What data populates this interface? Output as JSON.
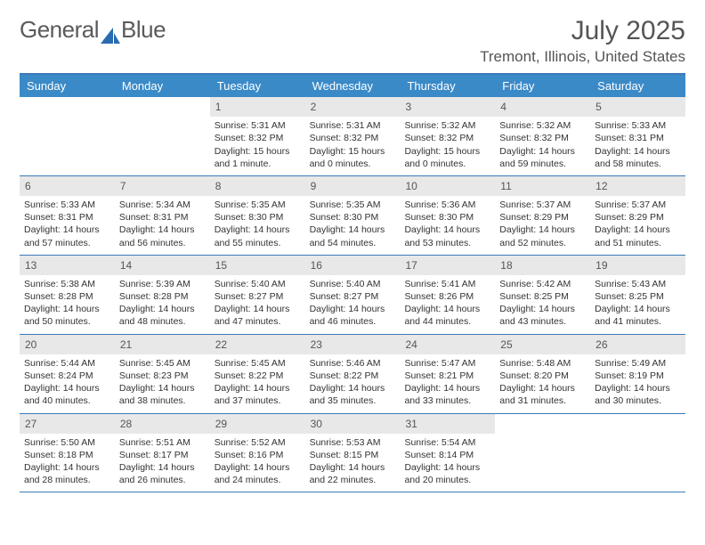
{
  "logo": {
    "text1": "General",
    "text2": "Blue"
  },
  "title": "July 2025",
  "location": "Tremont, Illinois, United States",
  "colors": {
    "header_bg": "#3b8ac8",
    "border": "#3b7ab8",
    "daynum_bg": "#e8e8e8",
    "text": "#333333",
    "title_text": "#555555"
  },
  "typography": {
    "title_fontsize": 30,
    "location_fontsize": 17,
    "weekday_fontsize": 13,
    "daynum_fontsize": 12,
    "body_fontsize": 10.5
  },
  "weekdays": [
    "Sunday",
    "Monday",
    "Tuesday",
    "Wednesday",
    "Thursday",
    "Friday",
    "Saturday"
  ],
  "weeks": [
    [
      {
        "n": "",
        "sr": "",
        "ss": "",
        "dl": ""
      },
      {
        "n": "",
        "sr": "",
        "ss": "",
        "dl": ""
      },
      {
        "n": "1",
        "sr": "Sunrise: 5:31 AM",
        "ss": "Sunset: 8:32 PM",
        "dl": "Daylight: 15 hours and 1 minute."
      },
      {
        "n": "2",
        "sr": "Sunrise: 5:31 AM",
        "ss": "Sunset: 8:32 PM",
        "dl": "Daylight: 15 hours and 0 minutes."
      },
      {
        "n": "3",
        "sr": "Sunrise: 5:32 AM",
        "ss": "Sunset: 8:32 PM",
        "dl": "Daylight: 15 hours and 0 minutes."
      },
      {
        "n": "4",
        "sr": "Sunrise: 5:32 AM",
        "ss": "Sunset: 8:32 PM",
        "dl": "Daylight: 14 hours and 59 minutes."
      },
      {
        "n": "5",
        "sr": "Sunrise: 5:33 AM",
        "ss": "Sunset: 8:31 PM",
        "dl": "Daylight: 14 hours and 58 minutes."
      }
    ],
    [
      {
        "n": "6",
        "sr": "Sunrise: 5:33 AM",
        "ss": "Sunset: 8:31 PM",
        "dl": "Daylight: 14 hours and 57 minutes."
      },
      {
        "n": "7",
        "sr": "Sunrise: 5:34 AM",
        "ss": "Sunset: 8:31 PM",
        "dl": "Daylight: 14 hours and 56 minutes."
      },
      {
        "n": "8",
        "sr": "Sunrise: 5:35 AM",
        "ss": "Sunset: 8:30 PM",
        "dl": "Daylight: 14 hours and 55 minutes."
      },
      {
        "n": "9",
        "sr": "Sunrise: 5:35 AM",
        "ss": "Sunset: 8:30 PM",
        "dl": "Daylight: 14 hours and 54 minutes."
      },
      {
        "n": "10",
        "sr": "Sunrise: 5:36 AM",
        "ss": "Sunset: 8:30 PM",
        "dl": "Daylight: 14 hours and 53 minutes."
      },
      {
        "n": "11",
        "sr": "Sunrise: 5:37 AM",
        "ss": "Sunset: 8:29 PM",
        "dl": "Daylight: 14 hours and 52 minutes."
      },
      {
        "n": "12",
        "sr": "Sunrise: 5:37 AM",
        "ss": "Sunset: 8:29 PM",
        "dl": "Daylight: 14 hours and 51 minutes."
      }
    ],
    [
      {
        "n": "13",
        "sr": "Sunrise: 5:38 AM",
        "ss": "Sunset: 8:28 PM",
        "dl": "Daylight: 14 hours and 50 minutes."
      },
      {
        "n": "14",
        "sr": "Sunrise: 5:39 AM",
        "ss": "Sunset: 8:28 PM",
        "dl": "Daylight: 14 hours and 48 minutes."
      },
      {
        "n": "15",
        "sr": "Sunrise: 5:40 AM",
        "ss": "Sunset: 8:27 PM",
        "dl": "Daylight: 14 hours and 47 minutes."
      },
      {
        "n": "16",
        "sr": "Sunrise: 5:40 AM",
        "ss": "Sunset: 8:27 PM",
        "dl": "Daylight: 14 hours and 46 minutes."
      },
      {
        "n": "17",
        "sr": "Sunrise: 5:41 AM",
        "ss": "Sunset: 8:26 PM",
        "dl": "Daylight: 14 hours and 44 minutes."
      },
      {
        "n": "18",
        "sr": "Sunrise: 5:42 AM",
        "ss": "Sunset: 8:25 PM",
        "dl": "Daylight: 14 hours and 43 minutes."
      },
      {
        "n": "19",
        "sr": "Sunrise: 5:43 AM",
        "ss": "Sunset: 8:25 PM",
        "dl": "Daylight: 14 hours and 41 minutes."
      }
    ],
    [
      {
        "n": "20",
        "sr": "Sunrise: 5:44 AM",
        "ss": "Sunset: 8:24 PM",
        "dl": "Daylight: 14 hours and 40 minutes."
      },
      {
        "n": "21",
        "sr": "Sunrise: 5:45 AM",
        "ss": "Sunset: 8:23 PM",
        "dl": "Daylight: 14 hours and 38 minutes."
      },
      {
        "n": "22",
        "sr": "Sunrise: 5:45 AM",
        "ss": "Sunset: 8:22 PM",
        "dl": "Daylight: 14 hours and 37 minutes."
      },
      {
        "n": "23",
        "sr": "Sunrise: 5:46 AM",
        "ss": "Sunset: 8:22 PM",
        "dl": "Daylight: 14 hours and 35 minutes."
      },
      {
        "n": "24",
        "sr": "Sunrise: 5:47 AM",
        "ss": "Sunset: 8:21 PM",
        "dl": "Daylight: 14 hours and 33 minutes."
      },
      {
        "n": "25",
        "sr": "Sunrise: 5:48 AM",
        "ss": "Sunset: 8:20 PM",
        "dl": "Daylight: 14 hours and 31 minutes."
      },
      {
        "n": "26",
        "sr": "Sunrise: 5:49 AM",
        "ss": "Sunset: 8:19 PM",
        "dl": "Daylight: 14 hours and 30 minutes."
      }
    ],
    [
      {
        "n": "27",
        "sr": "Sunrise: 5:50 AM",
        "ss": "Sunset: 8:18 PM",
        "dl": "Daylight: 14 hours and 28 minutes."
      },
      {
        "n": "28",
        "sr": "Sunrise: 5:51 AM",
        "ss": "Sunset: 8:17 PM",
        "dl": "Daylight: 14 hours and 26 minutes."
      },
      {
        "n": "29",
        "sr": "Sunrise: 5:52 AM",
        "ss": "Sunset: 8:16 PM",
        "dl": "Daylight: 14 hours and 24 minutes."
      },
      {
        "n": "30",
        "sr": "Sunrise: 5:53 AM",
        "ss": "Sunset: 8:15 PM",
        "dl": "Daylight: 14 hours and 22 minutes."
      },
      {
        "n": "31",
        "sr": "Sunrise: 5:54 AM",
        "ss": "Sunset: 8:14 PM",
        "dl": "Daylight: 14 hours and 20 minutes."
      },
      {
        "n": "",
        "sr": "",
        "ss": "",
        "dl": ""
      },
      {
        "n": "",
        "sr": "",
        "ss": "",
        "dl": ""
      }
    ]
  ]
}
